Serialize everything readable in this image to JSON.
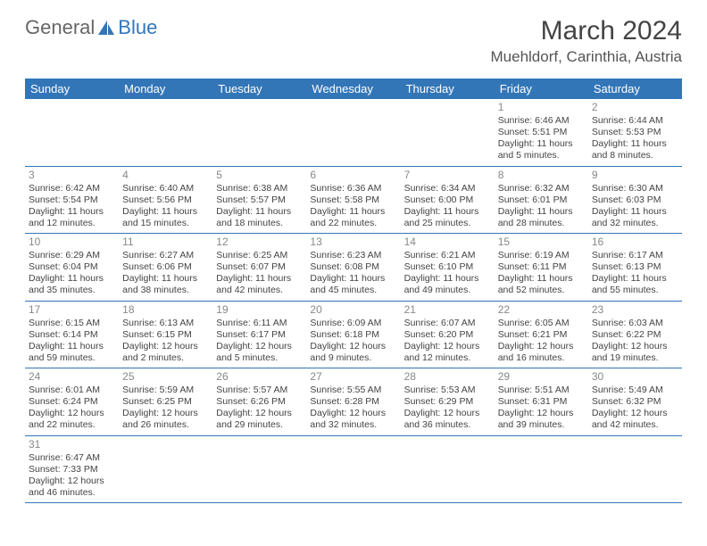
{
  "logo": {
    "text1": "General",
    "text2": "Blue"
  },
  "title": "March 2024",
  "location": "Muehldorf, Carinthia, Austria",
  "colors": {
    "header_bg": "#3376b8",
    "header_text": "#ffffff",
    "rule": "#3376b8",
    "daynum": "#888888",
    "body_text": "#444444"
  },
  "dayNames": [
    "Sunday",
    "Monday",
    "Tuesday",
    "Wednesday",
    "Thursday",
    "Friday",
    "Saturday"
  ],
  "startOffset": 5,
  "days": [
    {
      "n": 1,
      "sunrise": "6:46 AM",
      "sunset": "5:51 PM",
      "daylight": "11 hours and 5 minutes."
    },
    {
      "n": 2,
      "sunrise": "6:44 AM",
      "sunset": "5:53 PM",
      "daylight": "11 hours and 8 minutes."
    },
    {
      "n": 3,
      "sunrise": "6:42 AM",
      "sunset": "5:54 PM",
      "daylight": "11 hours and 12 minutes."
    },
    {
      "n": 4,
      "sunrise": "6:40 AM",
      "sunset": "5:56 PM",
      "daylight": "11 hours and 15 minutes."
    },
    {
      "n": 5,
      "sunrise": "6:38 AM",
      "sunset": "5:57 PM",
      "daylight": "11 hours and 18 minutes."
    },
    {
      "n": 6,
      "sunrise": "6:36 AM",
      "sunset": "5:58 PM",
      "daylight": "11 hours and 22 minutes."
    },
    {
      "n": 7,
      "sunrise": "6:34 AM",
      "sunset": "6:00 PM",
      "daylight": "11 hours and 25 minutes."
    },
    {
      "n": 8,
      "sunrise": "6:32 AM",
      "sunset": "6:01 PM",
      "daylight": "11 hours and 28 minutes."
    },
    {
      "n": 9,
      "sunrise": "6:30 AM",
      "sunset": "6:03 PM",
      "daylight": "11 hours and 32 minutes."
    },
    {
      "n": 10,
      "sunrise": "6:29 AM",
      "sunset": "6:04 PM",
      "daylight": "11 hours and 35 minutes."
    },
    {
      "n": 11,
      "sunrise": "6:27 AM",
      "sunset": "6:06 PM",
      "daylight": "11 hours and 38 minutes."
    },
    {
      "n": 12,
      "sunrise": "6:25 AM",
      "sunset": "6:07 PM",
      "daylight": "11 hours and 42 minutes."
    },
    {
      "n": 13,
      "sunrise": "6:23 AM",
      "sunset": "6:08 PM",
      "daylight": "11 hours and 45 minutes."
    },
    {
      "n": 14,
      "sunrise": "6:21 AM",
      "sunset": "6:10 PM",
      "daylight": "11 hours and 49 minutes."
    },
    {
      "n": 15,
      "sunrise": "6:19 AM",
      "sunset": "6:11 PM",
      "daylight": "11 hours and 52 minutes."
    },
    {
      "n": 16,
      "sunrise": "6:17 AM",
      "sunset": "6:13 PM",
      "daylight": "11 hours and 55 minutes."
    },
    {
      "n": 17,
      "sunrise": "6:15 AM",
      "sunset": "6:14 PM",
      "daylight": "11 hours and 59 minutes."
    },
    {
      "n": 18,
      "sunrise": "6:13 AM",
      "sunset": "6:15 PM",
      "daylight": "12 hours and 2 minutes."
    },
    {
      "n": 19,
      "sunrise": "6:11 AM",
      "sunset": "6:17 PM",
      "daylight": "12 hours and 5 minutes."
    },
    {
      "n": 20,
      "sunrise": "6:09 AM",
      "sunset": "6:18 PM",
      "daylight": "12 hours and 9 minutes."
    },
    {
      "n": 21,
      "sunrise": "6:07 AM",
      "sunset": "6:20 PM",
      "daylight": "12 hours and 12 minutes."
    },
    {
      "n": 22,
      "sunrise": "6:05 AM",
      "sunset": "6:21 PM",
      "daylight": "12 hours and 16 minutes."
    },
    {
      "n": 23,
      "sunrise": "6:03 AM",
      "sunset": "6:22 PM",
      "daylight": "12 hours and 19 minutes."
    },
    {
      "n": 24,
      "sunrise": "6:01 AM",
      "sunset": "6:24 PM",
      "daylight": "12 hours and 22 minutes."
    },
    {
      "n": 25,
      "sunrise": "5:59 AM",
      "sunset": "6:25 PM",
      "daylight": "12 hours and 26 minutes."
    },
    {
      "n": 26,
      "sunrise": "5:57 AM",
      "sunset": "6:26 PM",
      "daylight": "12 hours and 29 minutes."
    },
    {
      "n": 27,
      "sunrise": "5:55 AM",
      "sunset": "6:28 PM",
      "daylight": "12 hours and 32 minutes."
    },
    {
      "n": 28,
      "sunrise": "5:53 AM",
      "sunset": "6:29 PM",
      "daylight": "12 hours and 36 minutes."
    },
    {
      "n": 29,
      "sunrise": "5:51 AM",
      "sunset": "6:31 PM",
      "daylight": "12 hours and 39 minutes."
    },
    {
      "n": 30,
      "sunrise": "5:49 AM",
      "sunset": "6:32 PM",
      "daylight": "12 hours and 42 minutes."
    },
    {
      "n": 31,
      "sunrise": "6:47 AM",
      "sunset": "7:33 PM",
      "daylight": "12 hours and 46 minutes."
    }
  ],
  "labels": {
    "sunrise": "Sunrise:",
    "sunset": "Sunset:",
    "daylight": "Daylight:"
  }
}
